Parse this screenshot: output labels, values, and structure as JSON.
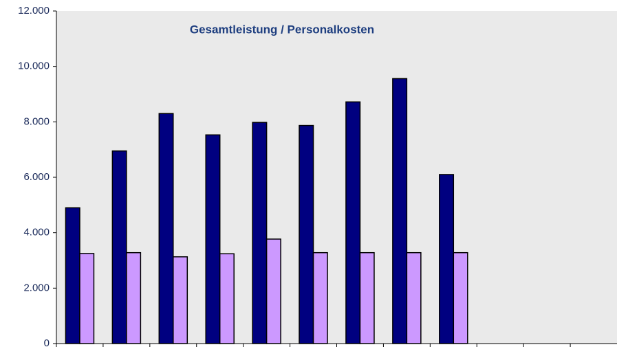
{
  "chart_data": {
    "type": "bar",
    "title": "Gesamtleistung /  Personalkosten",
    "categories": [
      null,
      null,
      null,
      null,
      null,
      null,
      null,
      null,
      null,
      null,
      null,
      null
    ],
    "series": [
      {
        "color": "#000080",
        "values": [
          4900,
          6950,
          8300,
          7530,
          7980,
          7870,
          8720,
          9560,
          6100,
          null,
          null,
          null
        ]
      },
      {
        "color": "#cc99ff",
        "values": [
          3250,
          3280,
          3130,
          3240,
          3770,
          3280,
          3280,
          3280,
          3280,
          null,
          null,
          null
        ]
      }
    ],
    "ylim": [
      0,
      12000
    ],
    "yticks": [
      0,
      {
        "value": 2000,
        "label": "2.000"
      },
      {
        "value": 4000,
        "label": "4.000"
      },
      {
        "value": 6000,
        "label": "6.000"
      },
      {
        "value": 8000,
        "label": "8.000"
      },
      {
        "value": 10000,
        "label": "10.000"
      },
      {
        "value": 12000,
        "label": "12.000"
      }
    ],
    "grid": false
  }
}
